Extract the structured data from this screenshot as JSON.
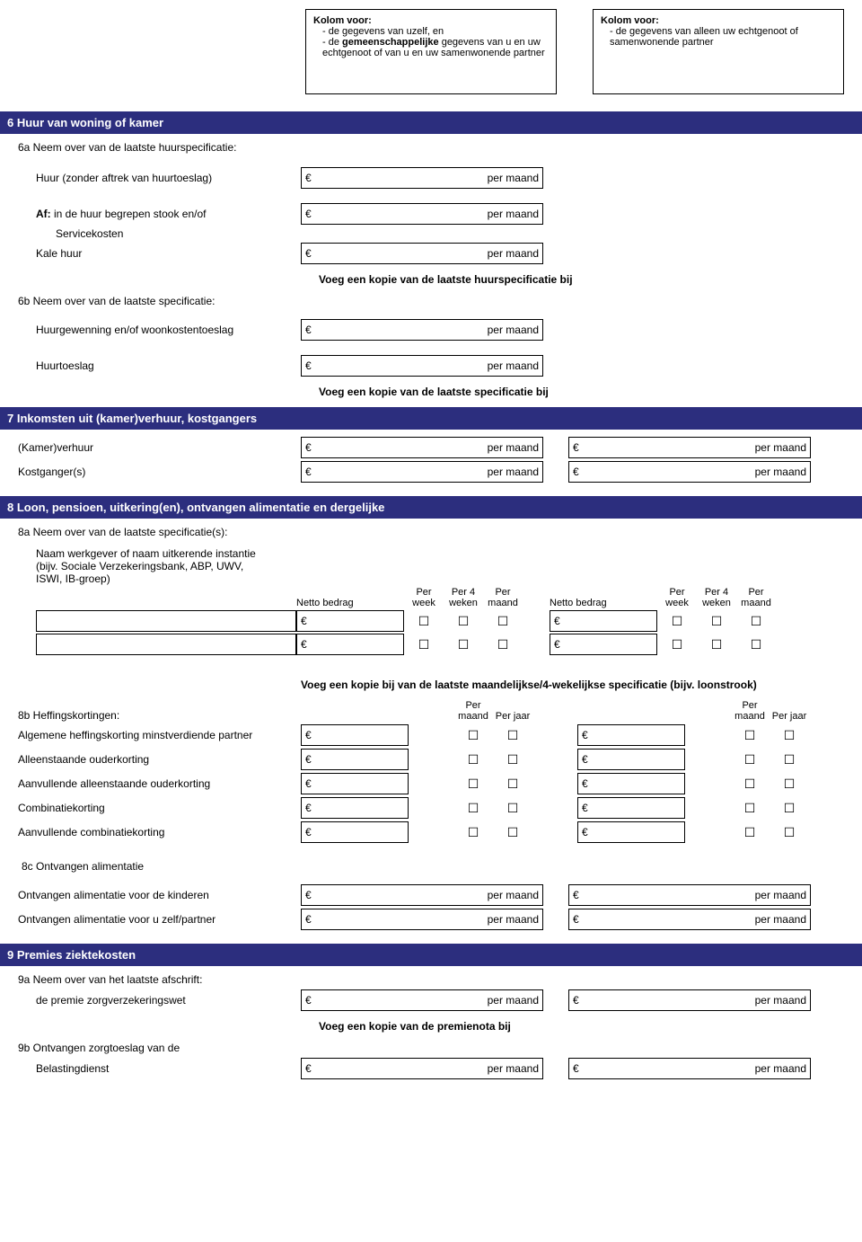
{
  "colors": {
    "bar_bg": "#2c2e7e",
    "bar_fg": "#ffffff",
    "page_bg": "#ffffff",
    "text": "#000000",
    "border": "#000000"
  },
  "euro": "€",
  "per_maand": "per maand",
  "checkbox_glyph": "☐",
  "topboxes": {
    "left": {
      "title": "Kolom voor:",
      "b1": "de gegevens van uzelf, en",
      "b2a": "de ",
      "b2b": "gemeenschappelijke",
      "b2c": " gegevens van u en uw echtgenoot of van u en uw samenwonende partner"
    },
    "right": {
      "title": "Kolom voor:",
      "b1": "de gegevens van alleen uw echtgenoot of samenwonende partner"
    }
  },
  "s6": {
    "bar": "6   Huur van woning of kamer",
    "a_head": "6a  Neem over van de laatste huurspecificatie:",
    "huur": "Huur (zonder aftrek van huurtoeslag)",
    "af1": "Af:",
    "af2": " in de huur begrepen stook en/of",
    "af3": "Servicekosten",
    "kale": "Kale huur",
    "note1": "Voeg een kopie van de laatste huurspecificatie bij",
    "b_head": "6b  Neem over van de laatste specificatie:",
    "huurgew": "Huurgewenning en/of woonkostentoeslag",
    "huurtoeslag": "Huurtoeslag",
    "note2": "Voeg een kopie van de laatste specificatie bij"
  },
  "s7": {
    "bar": "7   Inkomsten uit (kamer)verhuur, kostgangers",
    "kamer": "(Kamer)verhuur",
    "kost": "Kostganger(s)"
  },
  "s8": {
    "bar": "8   Loon, pensioen, uitkering(en), ontvangen alimentatie en dergelijke",
    "a_head": "8a Neem over van de laatste specificatie(s):",
    "naam1": "Naam werkgever of naam uitkerende instantie",
    "naam2": "(bijv. Sociale Verzekeringsbank, ABP, UWV, ",
    "naam3": "ISWI, IB-groep)",
    "netto": "Netto bedrag",
    "perweek": "Per week",
    "per4": "Per 4 weken",
    "permaand": "Per maand",
    "b_head": "8b Heffingskortingen:",
    "note8b": "Voeg een kopie bij van de laatste maandelijkse/4-wekelijkse specificatie (bijv. loonstrook)",
    "perjaar": "Per jaar",
    "hrows": [
      "Algemene heffingskorting minstverdiende partner",
      "Alleenstaande ouderkorting",
      "Aanvullende alleenstaande ouderkorting",
      "Combinatiekorting",
      "Aanvullende combinatiekorting"
    ],
    "c_head": "8c Ontvangen alimentatie",
    "alim_kind": "Ontvangen alimentatie voor de kinderen",
    "alim_zelf": "Ontvangen alimentatie voor u zelf/partner"
  },
  "s9": {
    "bar": "9   Premies ziektekosten",
    "a_head": "9a Neem over van het laatste afschrift:",
    "a_sub": "de premie zorgverzekeringswet",
    "note": "Voeg een kopie van de premienota bij",
    "b_head": "9b Ontvangen zorgtoeslag van de",
    "b_sub": "Belastingdienst"
  }
}
